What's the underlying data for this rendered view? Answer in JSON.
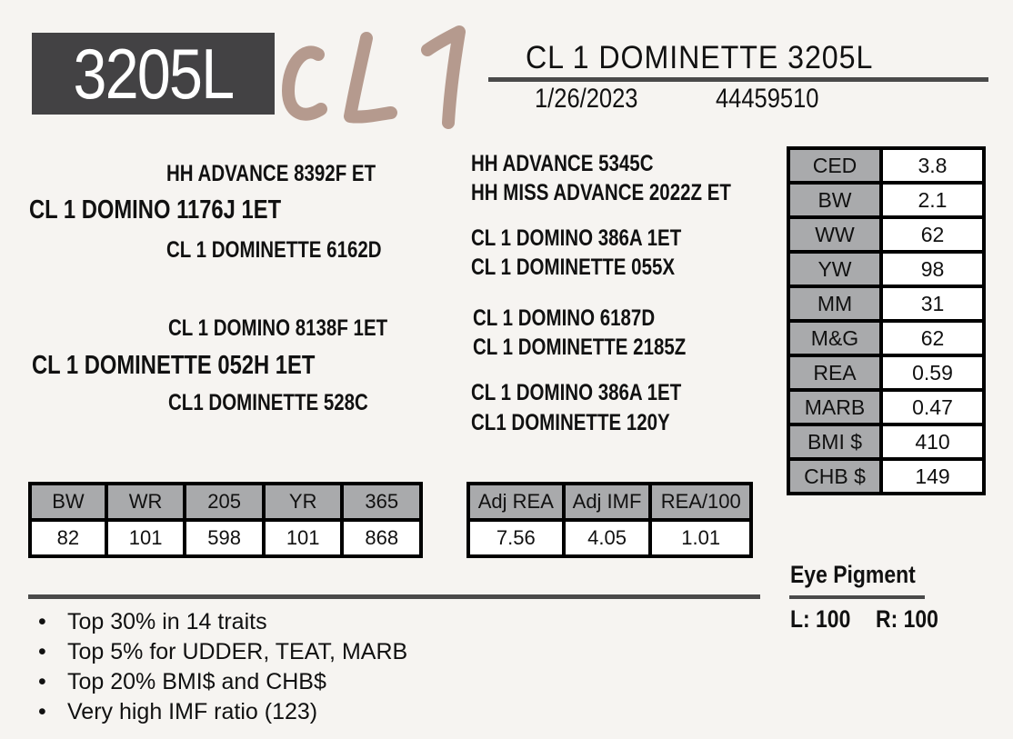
{
  "header": {
    "lot_number": "3205L",
    "logo_text": "CL1",
    "animal_name": "CL 1 DOMINETTE 3205L",
    "birth_date": "1/26/2023",
    "registration": "44459510",
    "colors": {
      "lot_box": "#434244",
      "logo": "#b59a8e"
    }
  },
  "pedigree": {
    "sire": "CL 1 DOMINO 1176J 1ET",
    "sire_sire": "HH ADVANCE 8392F ET",
    "sire_dam": "CL 1 DOMINETTE 6162D",
    "sire_sire_sire": "HH ADVANCE 5345C",
    "sire_sire_dam": "HH MISS ADVANCE 2022Z ET",
    "sire_dam_sire": "CL 1 DOMINO 386A 1ET",
    "sire_dam_dam": "CL 1 DOMINETTE 055X",
    "dam": "CL 1 DOMINETTE 052H 1ET",
    "dam_sire": "CL 1 DOMINO 8138F 1ET",
    "dam_dam": "CL1 DOMINETTE 528C",
    "dam_sire_sire": "CL 1 DOMINO 6187D",
    "dam_sire_dam": "CL 1 DOMINETTE 2185Z",
    "dam_dam_sire": "CL 1 DOMINO 386A 1ET",
    "dam_dam_dam": "CL1 DOMINETTE 120Y"
  },
  "epds": [
    {
      "label": "CED",
      "value": "3.8"
    },
    {
      "label": "BW",
      "value": "2.1"
    },
    {
      "label": "WW",
      "value": "62"
    },
    {
      "label": "YW",
      "value": "98"
    },
    {
      "label": "MM",
      "value": "31"
    },
    {
      "label": "M&G",
      "value": "62"
    },
    {
      "label": "REA",
      "value": "0.59"
    },
    {
      "label": "MARB",
      "value": "0.47"
    },
    {
      "label": "BMI $",
      "value": "410"
    },
    {
      "label": "CHB $",
      "value": "149"
    }
  ],
  "weights": {
    "headers": [
      "BW",
      "WR",
      "205",
      "YR",
      "365"
    ],
    "values": [
      "82",
      "101",
      "598",
      "101",
      "868"
    ]
  },
  "carcass": {
    "headers": [
      "Adj REA",
      "Adj IMF",
      "REA/100"
    ],
    "values": [
      "7.56",
      "4.05",
      "1.01"
    ]
  },
  "eye_pigment": {
    "title": "Eye Pigment",
    "left": "L: 100",
    "right": "R: 100"
  },
  "notes": [
    "Top 30% in 14 traits",
    "Top 5% for UDDER, TEAT, MARB",
    "Top 20% BMI$ and CHB$",
    "Very high IMF ratio (123)"
  ],
  "bullet": "•"
}
